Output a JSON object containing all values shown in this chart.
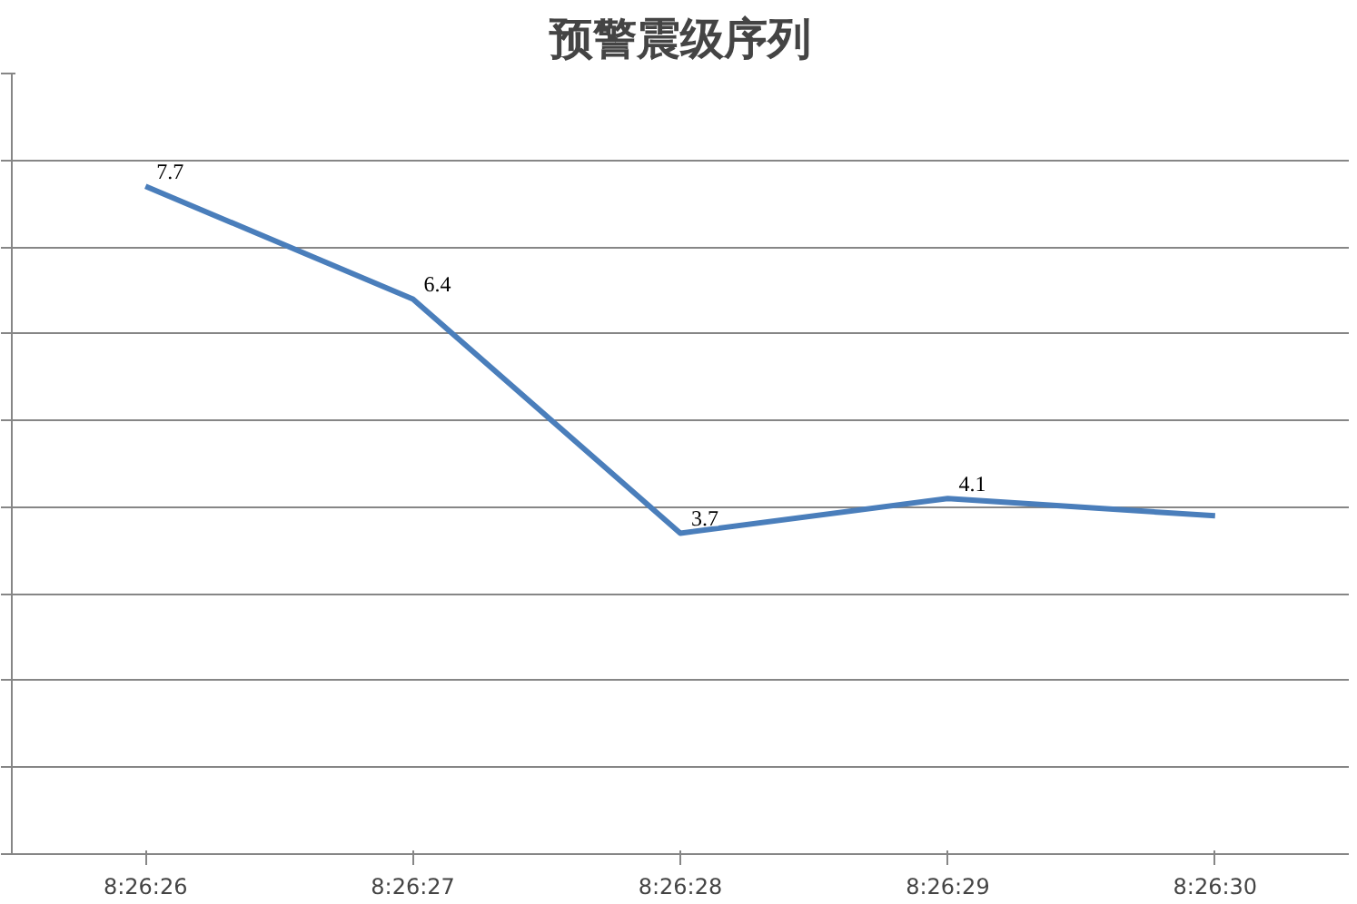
{
  "chart_data": {
    "type": "line",
    "title": "预警震级序列",
    "categories": [
      "8:26:26",
      "8:26:27",
      "8:26:28",
      "8:26:29",
      "8:26:30"
    ],
    "series": [
      {
        "color": "#4a7ebb",
        "values": [
          7.7,
          6.4,
          3.7,
          4.1,
          3.9
        ],
        "value_labels": [
          "7.7",
          "6.4",
          "3.7",
          "4.1",
          null
        ]
      }
    ],
    "ylim": [
      0,
      9
    ],
    "yticks": [
      {
        "value": 0,
        "label": null
      },
      {
        "value": 1,
        "label": null
      },
      {
        "value": 2,
        "label": null
      },
      {
        "value": 3,
        "label": null
      },
      {
        "value": 4,
        "label": null
      },
      {
        "value": 5,
        "label": null
      },
      {
        "value": 6,
        "label": null
      },
      {
        "value": 7,
        "label": null
      },
      {
        "value": 8,
        "label": null
      },
      {
        "value": 9,
        "label": null
      }
    ],
    "tick_labels": "x",
    "grid": "y",
    "marker": "none",
    "line_style": "solid"
  }
}
